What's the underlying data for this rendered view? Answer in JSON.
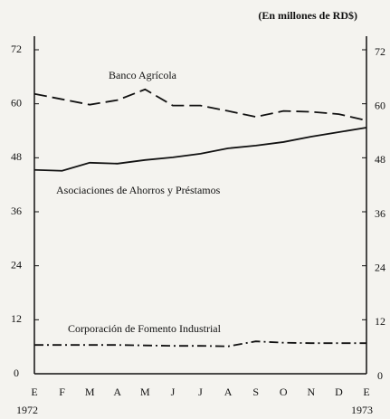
{
  "chart_data": {
    "type": "line",
    "subtitle": "(En millones de RD$)",
    "categories": [
      "E",
      "F",
      "M",
      "A",
      "M",
      "J",
      "J",
      "A",
      "S",
      "O",
      "N",
      "D",
      "E"
    ],
    "year_labels": [
      "1972",
      "1973"
    ],
    "series": [
      {
        "name": "Banco Agrícola",
        "color": "#111",
        "dash": "dashed",
        "values": [
          62.2,
          61.0,
          59.8,
          60.8,
          63.2,
          59.6,
          59.6,
          58.4,
          57.1,
          58.4,
          58.2,
          57.7,
          56.3
        ]
      },
      {
        "name": "Asociaciones de Ahorros y Préstamos",
        "color": "#111",
        "dash": "solid",
        "values": [
          45.3,
          45.1,
          46.9,
          46.7,
          47.5,
          48.1,
          48.9,
          50.1,
          50.7,
          51.5,
          52.7,
          53.7,
          54.7
        ]
      },
      {
        "name": "Corporación de Fomento Industrial",
        "color": "#111",
        "dash": "dashdot",
        "values": [
          6.4,
          6.4,
          6.4,
          6.4,
          6.3,
          6.2,
          6.2,
          6.1,
          7.2,
          6.9,
          6.8,
          6.8,
          6.8
        ]
      }
    ],
    "ylim": [
      0,
      72
    ],
    "yticks": [
      0,
      12,
      24,
      36,
      48,
      60,
      72
    ],
    "y2lim": [
      0,
      72
    ],
    "y2ticks": [
      0,
      12,
      24,
      36,
      48,
      60,
      72
    ]
  }
}
